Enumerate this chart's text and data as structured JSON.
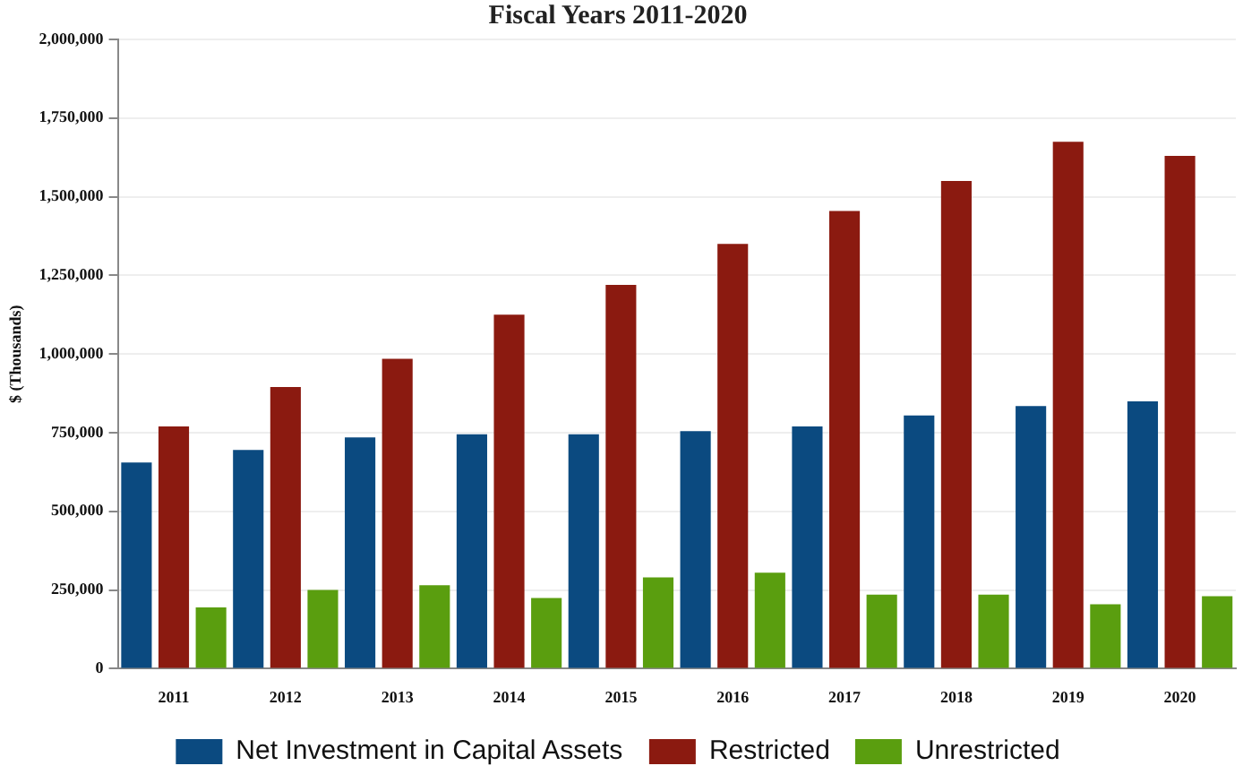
{
  "chart_data": {
    "type": "bar",
    "title": "Fiscal Years 2011-2020",
    "ylabel": "$ (Thousands)",
    "categories": [
      "2011",
      "2012",
      "2013",
      "2014",
      "2015",
      "2016",
      "2017",
      "2018",
      "2019",
      "2020"
    ],
    "series": [
      {
        "name": "Net Investment in Capital Assets",
        "color": "#0b4a80",
        "values": [
          655000,
          695000,
          735000,
          745000,
          745000,
          755000,
          770000,
          805000,
          835000,
          850000
        ]
      },
      {
        "name": "Restricted",
        "color": "#8b1a10",
        "values": [
          770000,
          895000,
          985000,
          1125000,
          1220000,
          1350000,
          1455000,
          1550000,
          1675000,
          1630000
        ]
      },
      {
        "name": "Unrestricted",
        "color": "#5a9e0f",
        "values": [
          195000,
          250000,
          265000,
          225000,
          290000,
          305000,
          235000,
          235000,
          205000,
          230000
        ]
      }
    ],
    "ylim": [
      0,
      2000000
    ],
    "yticks": [
      0,
      {
        "value": 250000,
        "label": "250,000"
      },
      {
        "value": 500000,
        "label": "500,000"
      },
      {
        "value": 750000,
        "label": "750,000"
      },
      {
        "value": 1000000,
        "label": "1,000,000"
      },
      {
        "value": 1250000,
        "label": "1,250,000"
      },
      {
        "value": 1500000,
        "label": "1,500,000"
      },
      {
        "value": 1750000,
        "label": "1,750,000"
      },
      {
        "value": 2000000,
        "label": "2,000,000"
      }
    ],
    "grid": "y",
    "legend": "bottom"
  }
}
